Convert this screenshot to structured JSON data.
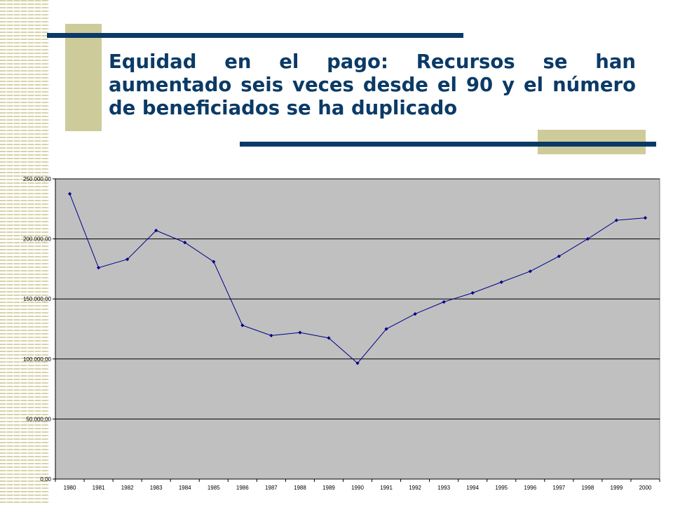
{
  "slide": {
    "title": "Equidad en el pago: Recursos se han aumentado seis veces desde el 90 y el número de beneficiados se ha duplicado",
    "accent_color": "#0b3a66",
    "deco_color": "#cdcb99"
  },
  "chart_data": {
    "type": "line",
    "title": "",
    "xlabel": "",
    "ylabel": "",
    "categories": [
      "1980",
      "1981",
      "1982",
      "1983",
      "1984",
      "1985",
      "1986",
      "1987",
      "1988",
      "1989",
      "1990",
      "1991",
      "1992",
      "1993",
      "1994",
      "1995",
      "1996",
      "1997",
      "1998",
      "1999",
      "2000"
    ],
    "series": [
      {
        "values": [
          237500,
          176000,
          183000,
          207000,
          197000,
          181000,
          128000,
          119500,
          122000,
          117500,
          96500,
          125000,
          137500,
          147500,
          155000,
          164000,
          173000,
          185500,
          200000,
          215500,
          217500
        ],
        "color": "#00008b"
      }
    ],
    "ylim": [
      0,
      250000
    ],
    "y_ticks": [
      0,
      50000,
      100000,
      150000,
      200000,
      250000
    ],
    "y_tick_labels": [
      "0,00",
      "50.000,00",
      "100.000,00",
      "150.000,00",
      "200.000,00",
      "250.000,00"
    ],
    "plot_background": "#c0c0c0",
    "grid": true,
    "legend": "none"
  }
}
